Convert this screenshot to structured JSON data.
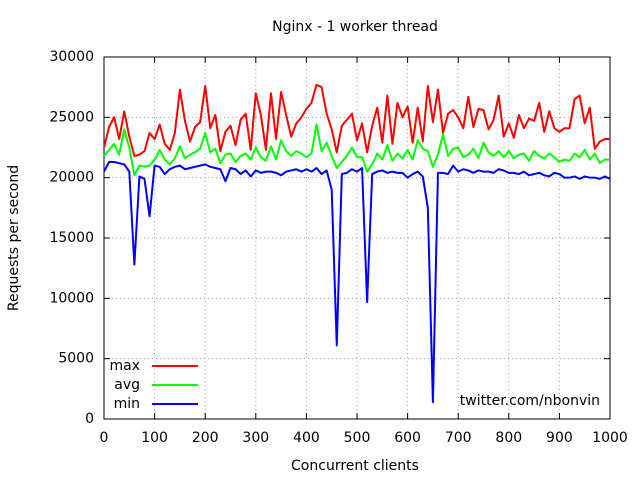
{
  "chart_data": {
    "type": "line",
    "title": "Nginx - 1 worker thread",
    "xlabel": "Concurrent clients",
    "ylabel": "Requests per second",
    "annotation": "twitter.com/nbonvin",
    "xlim": [
      0,
      1000
    ],
    "ylim": [
      0,
      30000
    ],
    "xticks": [
      0,
      100,
      200,
      300,
      400,
      500,
      600,
      700,
      800,
      900,
      1000
    ],
    "yticks": [
      0,
      5000,
      10000,
      15000,
      20000,
      25000,
      30000
    ],
    "grid": true,
    "legend": "bottom left",
    "x": [
      0,
      10,
      20,
      30,
      40,
      50,
      60,
      70,
      80,
      90,
      100,
      110,
      120,
      130,
      140,
      150,
      160,
      170,
      180,
      190,
      200,
      210,
      220,
      230,
      240,
      250,
      260,
      270,
      280,
      290,
      300,
      310,
      320,
      330,
      340,
      350,
      360,
      370,
      380,
      390,
      400,
      410,
      420,
      430,
      440,
      450,
      460,
      470,
      480,
      490,
      500,
      510,
      520,
      530,
      540,
      550,
      560,
      570,
      580,
      590,
      600,
      610,
      620,
      630,
      640,
      650,
      660,
      670,
      680,
      690,
      700,
      710,
      720,
      730,
      740,
      750,
      760,
      770,
      780,
      790,
      800,
      810,
      820,
      830,
      840,
      850,
      860,
      870,
      880,
      890,
      900,
      910,
      920,
      930,
      940,
      950,
      960,
      970,
      980,
      990,
      1000
    ],
    "series": [
      {
        "name": "max",
        "color": "#ff0000",
        "values": [
          22500,
          24200,
          25000,
          23200,
          25500,
          23400,
          21800,
          21900,
          22200,
          23700,
          23200,
          24400,
          22800,
          22300,
          23700,
          27300,
          24700,
          23000,
          24200,
          24600,
          27600,
          24100,
          25200,
          22200,
          23800,
          24300,
          22700,
          24800,
          25300,
          22300,
          27000,
          25200,
          22300,
          27000,
          23200,
          27100,
          25200,
          23400,
          24500,
          25000,
          25700,
          26200,
          27700,
          27500,
          25300,
          24000,
          22100,
          24300,
          24800,
          25300,
          23100,
          24500,
          22100,
          24300,
          25800,
          22900,
          26800,
          22800,
          26200,
          25000,
          25900,
          22900,
          25800,
          23000,
          27600,
          24600,
          27300,
          23700,
          25300,
          25600,
          25000,
          24100,
          26700,
          24200,
          25700,
          25600,
          24000,
          24800,
          26800,
          23400,
          24500,
          23300,
          25200,
          24100,
          24900,
          24700,
          26200,
          23800,
          25500,
          24100,
          23800,
          24100,
          24100,
          26500,
          26800,
          24500,
          25800,
          22400,
          23000,
          23200,
          23200
        ]
      },
      {
        "name": "avg",
        "color": "#00ff00",
        "values": [
          21800,
          22300,
          22800,
          21900,
          24000,
          22500,
          20200,
          21000,
          20900,
          21000,
          21500,
          22300,
          21500,
          21100,
          21600,
          22600,
          21600,
          21900,
          22100,
          22400,
          23700,
          22100,
          22400,
          21200,
          21900,
          22000,
          21300,
          21800,
          22000,
          21500,
          22500,
          21700,
          21400,
          22600,
          21500,
          23100,
          22200,
          21800,
          22200,
          22000,
          21700,
          22000,
          24400,
          22200,
          22900,
          21800,
          20800,
          21300,
          21800,
          22500,
          21700,
          21700,
          20500,
          21100,
          22000,
          21500,
          22700,
          21400,
          22000,
          21600,
          22300,
          21500,
          23100,
          22400,
          22200,
          20900,
          21900,
          23600,
          21800,
          22400,
          22500,
          21700,
          21900,
          22400,
          21600,
          22900,
          22100,
          21800,
          22200,
          21700,
          22200,
          21600,
          21900,
          22000,
          21400,
          22200,
          21800,
          21600,
          22000,
          21700,
          21300,
          21500,
          21400,
          22000,
          21700,
          22300,
          21500,
          22000,
          21200,
          21500,
          21500
        ]
      },
      {
        "name": "min",
        "color": "#0000ff",
        "values": [
          20500,
          21300,
          21300,
          21200,
          21100,
          20500,
          12800,
          20100,
          19900,
          16800,
          21000,
          20900,
          20300,
          20700,
          20900,
          21000,
          20700,
          20800,
          20900,
          21000,
          21100,
          20900,
          20800,
          20700,
          19700,
          20800,
          20700,
          20300,
          20600,
          20100,
          20600,
          20400,
          20500,
          20500,
          20400,
          20200,
          20500,
          20600,
          20700,
          20500,
          20700,
          20500,
          20800,
          20300,
          20600,
          19000,
          6100,
          20300,
          20400,
          20700,
          20500,
          20800,
          9700,
          20300,
          20500,
          20600,
          20400,
          20500,
          20400,
          20400,
          20000,
          20300,
          20500,
          20100,
          17500,
          1400,
          20400,
          20400,
          20300,
          21000,
          20500,
          20700,
          20600,
          20400,
          20600,
          20500,
          20500,
          20400,
          20700,
          20600,
          20400,
          20400,
          20300,
          20500,
          20200,
          20300,
          20400,
          20200,
          20100,
          20400,
          20300,
          20000,
          20000,
          20100,
          19900,
          20100,
          20000,
          20000,
          19900,
          20100,
          19900
        ]
      }
    ]
  }
}
